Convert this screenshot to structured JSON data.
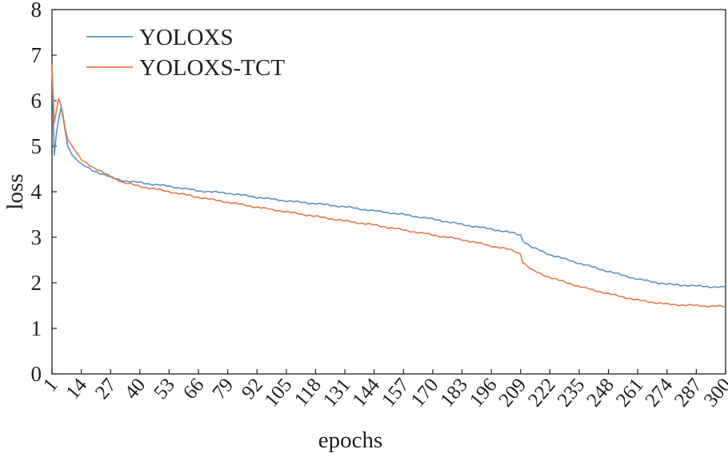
{
  "chart_data": {
    "type": "line",
    "xlabel": "epochs",
    "ylabel": "loss",
    "xlim": [
      1,
      300
    ],
    "ylim": [
      0,
      8
    ],
    "x_ticks": [
      "1",
      "14",
      "27",
      "40",
      "53",
      "66",
      "79",
      "92",
      "105",
      "118",
      "131",
      "144",
      "157",
      "170",
      "183",
      "196",
      "209",
      "222",
      "235",
      "248",
      "261",
      "274",
      "287",
      "300"
    ],
    "y_ticks": [
      "0",
      "1",
      "2",
      "3",
      "4",
      "5",
      "6",
      "7",
      "8"
    ],
    "grid": false,
    "legend_position": "top-left",
    "series": [
      {
        "name": "YOLOXS",
        "color": "#5b93c4",
        "points": [
          [
            1,
            6.8
          ],
          [
            2,
            4.8
          ],
          [
            3,
            5.3
          ],
          [
            4,
            5.6
          ],
          [
            5,
            5.85
          ],
          [
            6,
            5.6
          ],
          [
            7,
            5.3
          ],
          [
            8,
            5.0
          ],
          [
            10,
            4.8
          ],
          [
            14,
            4.6
          ],
          [
            20,
            4.45
          ],
          [
            27,
            4.32
          ],
          [
            33,
            4.24
          ],
          [
            40,
            4.2
          ],
          [
            53,
            4.12
          ],
          [
            66,
            4.02
          ],
          [
            79,
            3.97
          ],
          [
            92,
            3.88
          ],
          [
            105,
            3.8
          ],
          [
            118,
            3.74
          ],
          [
            131,
            3.67
          ],
          [
            144,
            3.58
          ],
          [
            157,
            3.5
          ],
          [
            170,
            3.4
          ],
          [
            183,
            3.28
          ],
          [
            196,
            3.18
          ],
          [
            205,
            3.1
          ],
          [
            209,
            3.05
          ],
          [
            210,
            2.93
          ],
          [
            214,
            2.78
          ],
          [
            222,
            2.62
          ],
          [
            235,
            2.43
          ],
          [
            248,
            2.25
          ],
          [
            261,
            2.08
          ],
          [
            274,
            1.97
          ],
          [
            287,
            1.93
          ],
          [
            300,
            1.9
          ]
        ]
      },
      {
        "name": "YOLOXS-TCT",
        "color": "#e07b4a",
        "points": [
          [
            1,
            6.8
          ],
          [
            2,
            5.5
          ],
          [
            3,
            5.8
          ],
          [
            4,
            6.05
          ],
          [
            5,
            5.9
          ],
          [
            6,
            5.65
          ],
          [
            7,
            5.35
          ],
          [
            8,
            5.15
          ],
          [
            10,
            5.0
          ],
          [
            14,
            4.7
          ],
          [
            20,
            4.52
          ],
          [
            27,
            4.33
          ],
          [
            33,
            4.2
          ],
          [
            40,
            4.12
          ],
          [
            53,
            4.0
          ],
          [
            66,
            3.88
          ],
          [
            79,
            3.77
          ],
          [
            92,
            3.66
          ],
          [
            105,
            3.56
          ],
          [
            118,
            3.46
          ],
          [
            131,
            3.36
          ],
          [
            144,
            3.27
          ],
          [
            157,
            3.16
          ],
          [
            170,
            3.05
          ],
          [
            183,
            2.95
          ],
          [
            196,
            2.81
          ],
          [
            205,
            2.72
          ],
          [
            209,
            2.64
          ],
          [
            210,
            2.45
          ],
          [
            214,
            2.28
          ],
          [
            222,
            2.12
          ],
          [
            235,
            1.92
          ],
          [
            248,
            1.76
          ],
          [
            261,
            1.62
          ],
          [
            274,
            1.53
          ],
          [
            287,
            1.5
          ],
          [
            300,
            1.48
          ]
        ]
      }
    ]
  }
}
